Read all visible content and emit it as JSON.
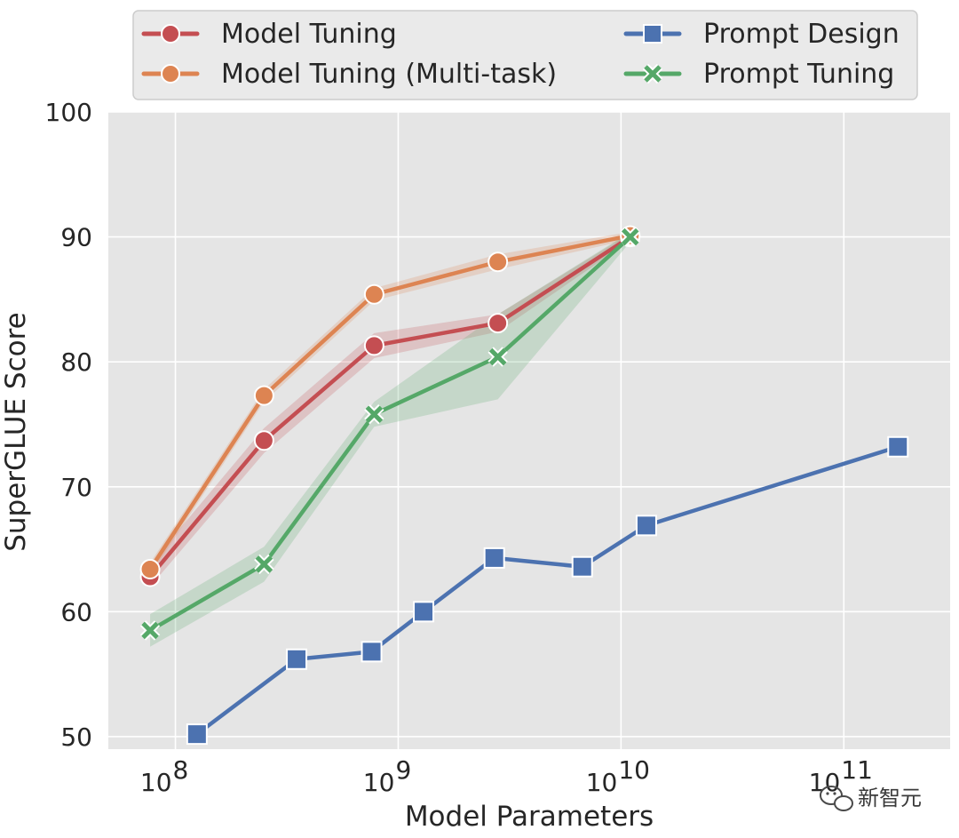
{
  "chart_data": {
    "type": "line",
    "xlabel": "Model Parameters",
    "ylabel": "SuperGLUE Score",
    "xscale": "log",
    "xlim": [
      50000000,
      300000000000
    ],
    "ylim": [
      49,
      100
    ],
    "grid": true,
    "y_ticks": [
      50,
      60,
      70,
      80,
      90,
      100
    ],
    "x_ticks": [
      {
        "value": 100000000,
        "base": "10",
        "exp": "8"
      },
      {
        "value": 1000000000,
        "base": "10",
        "exp": "9"
      },
      {
        "value": 10000000000,
        "base": "10",
        "exp": "10"
      },
      {
        "value": 100000000000,
        "base": "10",
        "exp": "11"
      }
    ],
    "legend_position": "top",
    "series": [
      {
        "name": "Model Tuning",
        "key": "model-tuning",
        "color": "#c44e52",
        "marker": "circle",
        "x": [
          77000000,
          250000000,
          780000000,
          2800000000,
          11000000000
        ],
        "y": [
          62.8,
          73.7,
          81.3,
          83.1,
          90.0
        ],
        "band_low": [
          62.0,
          72.7,
          80.3,
          82.4,
          89.7
        ],
        "band_high": [
          63.8,
          74.7,
          82.3,
          83.8,
          90.3
        ]
      },
      {
        "name": "Model Tuning (Multi-task)",
        "key": "model-tuning-multitask",
        "color": "#dd8452",
        "marker": "circle",
        "x": [
          77000000,
          250000000,
          780000000,
          2800000000,
          11000000000
        ],
        "y": [
          63.4,
          77.3,
          85.4,
          88.0,
          90.1
        ],
        "band_low": [
          62.9,
          76.8,
          84.9,
          87.4,
          89.8
        ],
        "band_high": [
          63.9,
          77.8,
          85.9,
          88.6,
          90.4
        ]
      },
      {
        "name": "Prompt Design",
        "key": "prompt-design",
        "color": "#4c72b0",
        "marker": "square",
        "x": [
          125000000,
          350000000,
          760000000,
          1300000000,
          2700000000,
          6700000000,
          13000000000,
          175000000000
        ],
        "y": [
          50.2,
          56.2,
          56.8,
          60.0,
          64.3,
          63.6,
          66.9,
          73.2
        ]
      },
      {
        "name": "Prompt Tuning",
        "key": "prompt-tuning",
        "color": "#55a868",
        "marker": "x",
        "x": [
          77000000,
          250000000,
          780000000,
          2800000000,
          11000000000
        ],
        "y": [
          58.5,
          63.8,
          75.8,
          80.4,
          90.0
        ],
        "band_low": [
          57.2,
          62.4,
          74.8,
          77.0,
          89.6
        ],
        "band_high": [
          59.8,
          65.2,
          76.8,
          83.8,
          90.4
        ]
      }
    ]
  },
  "legend": {
    "items": [
      {
        "label": "Model Tuning",
        "key": "model-tuning"
      },
      {
        "label": "Model Tuning (Multi-task)",
        "key": "model-tuning-multitask"
      },
      {
        "label": "Prompt Design",
        "key": "prompt-design"
      },
      {
        "label": "Prompt Tuning",
        "key": "prompt-tuning"
      }
    ]
  },
  "watermark": {
    "text": "新智元",
    "icon": "wechat-icon"
  },
  "colors": {
    "plot_background": "#e5e5e5",
    "grid": "#ffffff",
    "text": "#262626"
  }
}
